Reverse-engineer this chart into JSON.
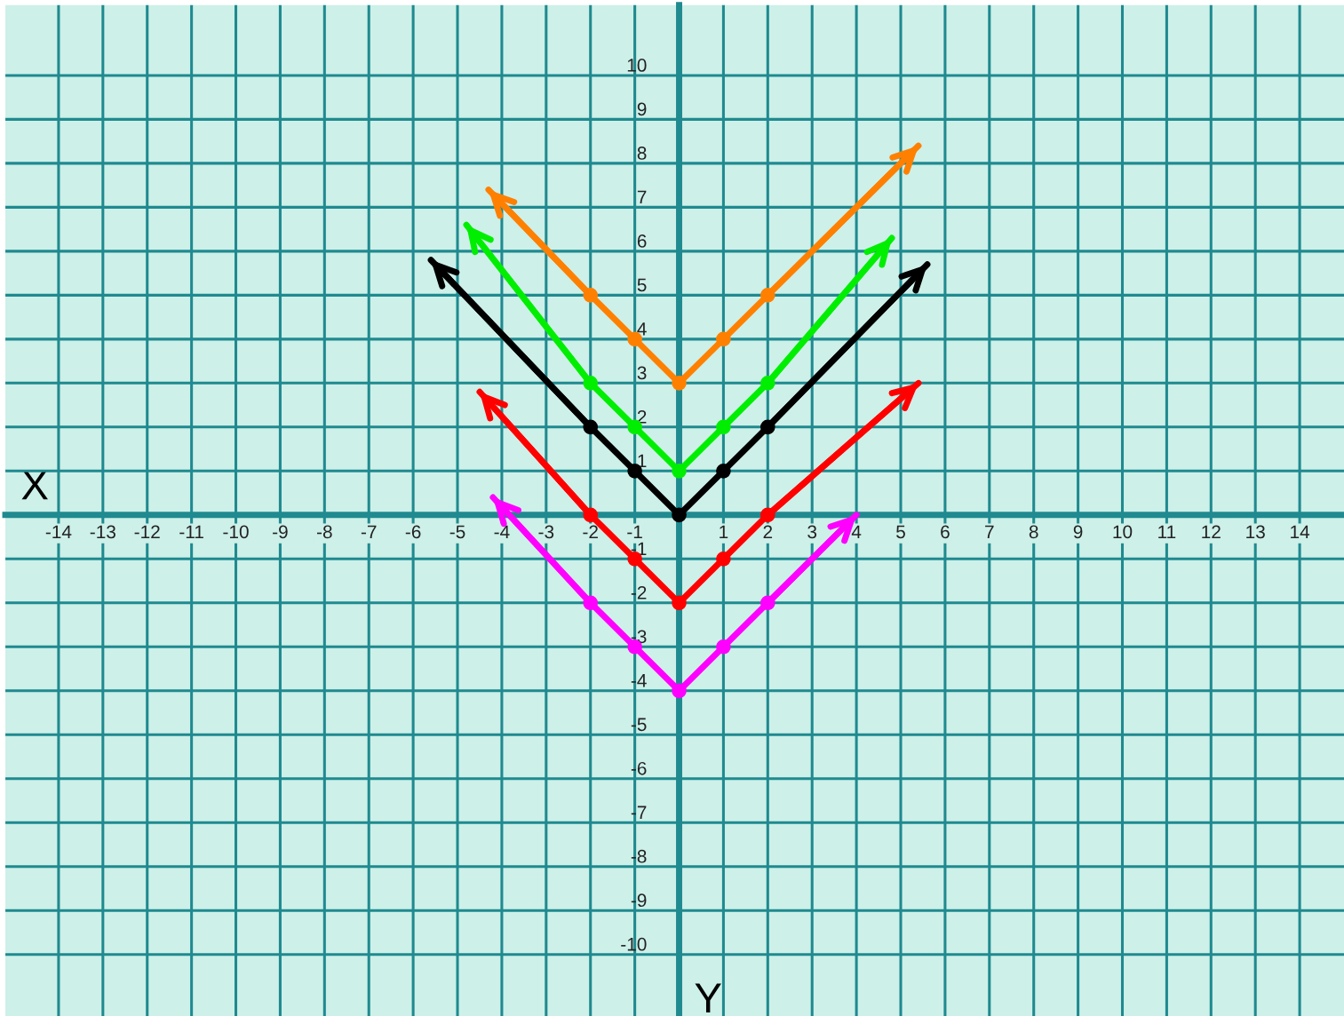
{
  "chart_data": {
    "type": "line",
    "xlabel": "X",
    "ylabel": "Y",
    "xlim": [
      -15.2,
      15
    ],
    "ylim": [
      -11.4,
      11.6
    ],
    "xticks": [
      -14,
      -13,
      -12,
      -11,
      -10,
      -9,
      -8,
      -7,
      -6,
      -5,
      -4,
      -3,
      -2,
      -1,
      1,
      2,
      3,
      4,
      5,
      6,
      7,
      8,
      9,
      10,
      11,
      12,
      13,
      14
    ],
    "yticks": [
      -10,
      -9,
      -8,
      -7,
      -6,
      -5,
      -4,
      -3,
      -2,
      -1,
      1,
      2,
      3,
      4,
      5,
      6,
      7,
      8,
      9,
      10
    ],
    "grid": true,
    "marker": "circle",
    "line_style": "solid",
    "series": [
      {
        "color": "#ff8000",
        "x": [
          -4.3,
          -2,
          -1,
          0,
          1,
          2,
          5.4
        ],
        "values": [
          7.4,
          5,
          4,
          3,
          4,
          5,
          8.4
        ]
      },
      {
        "color": "#00ee00",
        "x": [
          -4.8,
          -2,
          -1,
          0,
          1,
          2,
          4.8
        ],
        "values": [
          6.6,
          3,
          2,
          1,
          2,
          3,
          6.3
        ]
      },
      {
        "color": "#000000",
        "x": [
          -5.6,
          -2,
          -1,
          0,
          1,
          2,
          5.6
        ],
        "values": [
          5.8,
          2,
          1,
          0,
          1,
          2,
          5.7
        ]
      },
      {
        "color": "#ff0000",
        "x": [
          -4.5,
          -2,
          -1,
          0,
          1,
          2,
          5.4
        ],
        "values": [
          2.8,
          0,
          -1,
          -2,
          -1,
          0,
          3.0
        ]
      },
      {
        "color": "#ff00ff",
        "x": [
          -4.2,
          -2,
          -1,
          0,
          1,
          2,
          4.0
        ],
        "values": [
          0.4,
          -2,
          -3,
          -4,
          -3,
          -2,
          0
        ]
      }
    ]
  }
}
